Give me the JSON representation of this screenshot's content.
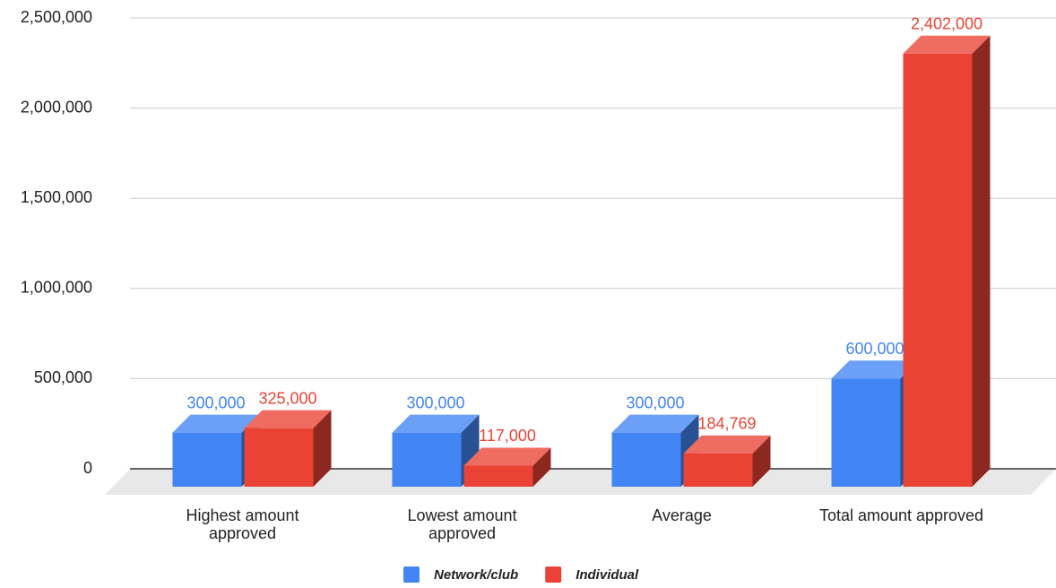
{
  "chart_data": {
    "type": "bar3d",
    "categories": [
      "Highest amount approved",
      "Lowest amount approved",
      "Average",
      "Total amount approved"
    ],
    "series": [
      {
        "name": "Network/club",
        "color": "#4285f4",
        "values": [
          300000,
          300000,
          300000,
          600000
        ],
        "value_labels": [
          "300,000",
          "300,000",
          "300,000",
          "600,000"
        ]
      },
      {
        "name": "Individual",
        "color": "#ea4335",
        "values": [
          325000,
          117000,
          184769,
          2402000
        ],
        "value_labels": [
          "325,000",
          "117,000",
          "184,769",
          "2,402,000"
        ]
      }
    ],
    "ylim": [
      0,
      2500000
    ],
    "yticks": [
      0,
      {
        "value": 500000,
        "label": "500,000"
      },
      {
        "value": 1000000,
        "label": "1,000,000"
      },
      {
        "value": 1500000,
        "label": "1,500,000"
      },
      {
        "value": 2000000,
        "label": "2,000,000"
      },
      {
        "value": 2500000,
        "label": "2,500,000"
      }
    ],
    "grid": true,
    "legend": "bottom"
  }
}
